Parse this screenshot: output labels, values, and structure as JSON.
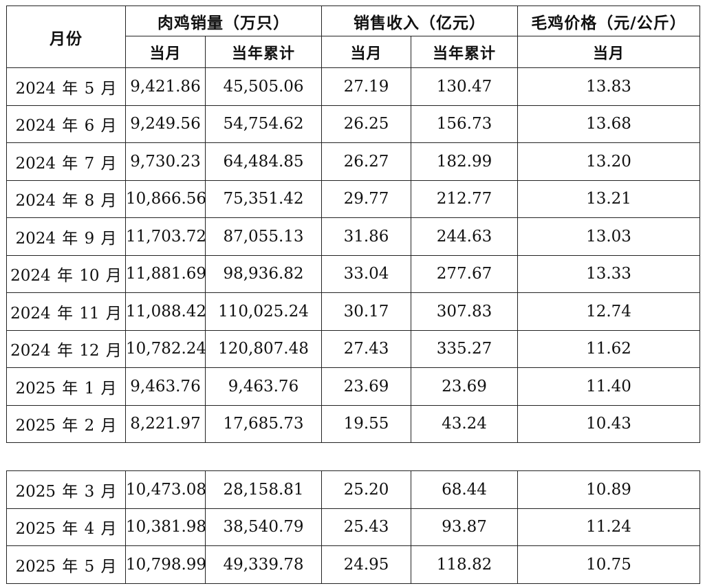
{
  "headers": {
    "month": "月份",
    "volume_group": "肉鸡销量（万只）",
    "revenue_group": "销售收入（亿元）",
    "price_group": "毛鸡价格（元/公斤）",
    "sub_current": "当月",
    "sub_ytd": "当年累计"
  },
  "rows_top": [
    {
      "month": "2024 年 5 月",
      "vol_month": "9,421.86",
      "vol_ytd": "45,505.06",
      "rev_month": "27.19",
      "rev_ytd": "130.47",
      "price": "13.83"
    },
    {
      "month": "2024 年 6 月",
      "vol_month": "9,249.56",
      "vol_ytd": "54,754.62",
      "rev_month": "26.25",
      "rev_ytd": "156.73",
      "price": "13.68"
    },
    {
      "month": "2024 年 7 月",
      "vol_month": "9,730.23",
      "vol_ytd": "64,484.85",
      "rev_month": "26.27",
      "rev_ytd": "182.99",
      "price": "13.20"
    },
    {
      "month": "2024 年 8 月",
      "vol_month": "10,866.56",
      "vol_ytd": "75,351.42",
      "rev_month": "29.77",
      "rev_ytd": "212.77",
      "price": "13.21"
    },
    {
      "month": "2024 年 9 月",
      "vol_month": "11,703.72",
      "vol_ytd": "87,055.13",
      "rev_month": "31.86",
      "rev_ytd": "244.63",
      "price": "13.03"
    },
    {
      "month": "2024 年 10 月",
      "vol_month": "11,881.69",
      "vol_ytd": "98,936.82",
      "rev_month": "33.04",
      "rev_ytd": "277.67",
      "price": "13.33"
    },
    {
      "month": "2024 年 11 月",
      "vol_month": "11,088.42",
      "vol_ytd": "110,025.24",
      "rev_month": "30.17",
      "rev_ytd": "307.83",
      "price": "12.74"
    },
    {
      "month": "2024 年 12 月",
      "vol_month": "10,782.24",
      "vol_ytd": "120,807.48",
      "rev_month": "27.43",
      "rev_ytd": "335.27",
      "price": "11.62"
    },
    {
      "month": "2025 年 1 月",
      "vol_month": "9,463.76",
      "vol_ytd": "9,463.76",
      "rev_month": "23.69",
      "rev_ytd": "23.69",
      "price": "11.40"
    },
    {
      "month": "2025 年 2 月",
      "vol_month": "8,221.97",
      "vol_ytd": "17,685.73",
      "rev_month": "19.55",
      "rev_ytd": "43.24",
      "price": "10.43"
    }
  ],
  "rows_bottom": [
    {
      "month": "2025 年 3 月",
      "vol_month": "10,473.08",
      "vol_ytd": "28,158.81",
      "rev_month": "25.20",
      "rev_ytd": "68.44",
      "price": "10.89"
    },
    {
      "month": "2025 年 4 月",
      "vol_month": "10,381.98",
      "vol_ytd": "38,540.79",
      "rev_month": "25.43",
      "rev_ytd": "93.87",
      "price": "11.24"
    },
    {
      "month": "2025 年 5 月",
      "vol_month": "10,798.99",
      "vol_ytd": "49,339.78",
      "rev_month": "24.95",
      "rev_ytd": "118.82",
      "price": "10.75"
    }
  ]
}
